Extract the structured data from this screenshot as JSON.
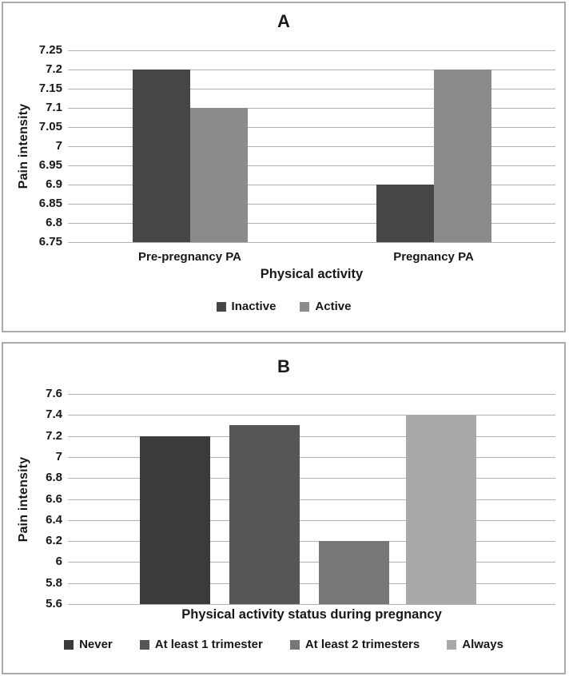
{
  "figure_labels": {
    "panel_a": "A",
    "panel_b": "B"
  },
  "colors": {
    "grid": "#b2b2b2",
    "panel_border": "#ababab",
    "text": "#171717",
    "background": "#ffffff"
  },
  "chart_data": [
    {
      "type": "bar",
      "title": "A",
      "xlabel": "Physical activity",
      "ylabel": "Pain intensity",
      "ylim": [
        6.75,
        7.25
      ],
      "ytick_interval": 0.05,
      "ytick_labels": [
        "7.25",
        "7.2",
        "7.15",
        "7.1",
        "7.05",
        "7",
        "6.95",
        "6.9",
        "6.85",
        "6.8",
        "6.75"
      ],
      "categories": [
        "Pre-pregnancy PA",
        "Pregnancy PA"
      ],
      "series": [
        {
          "name": "Inactive",
          "color": "#464646",
          "values": [
            7.2,
            6.9
          ]
        },
        {
          "name": "Active",
          "color": "#8b8b8b",
          "values": [
            7.1,
            7.2
          ]
        }
      ],
      "grid": true,
      "legend_position": "bottom",
      "legend": [
        "Inactive",
        "Active"
      ]
    },
    {
      "type": "bar",
      "title": "B",
      "xlabel": "Physical activity status during pregnancy",
      "ylabel": "Pain intensity",
      "ylim": [
        5.6,
        7.6
      ],
      "ytick_interval": 0.2,
      "ytick_labels": [
        "7.6",
        "7.4",
        "7.2",
        "7",
        "6.8",
        "6.6",
        "6.4",
        "6.2",
        "6",
        "5.8",
        "5.6"
      ],
      "categories": [
        "Never",
        "At least 1 trimester",
        "At least 2 trimesters",
        "Always"
      ],
      "series": [
        {
          "name": "Pain intensity",
          "values": [
            7.2,
            7.3,
            6.2,
            7.4
          ]
        }
      ],
      "bar_colors": [
        "#3b3b3b",
        "#565656",
        "#777777",
        "#a9a9a9"
      ],
      "legend": [
        "Never",
        "At least 1 trimester",
        "At least 2 trimesters",
        "Always"
      ],
      "grid": true,
      "legend_position": "bottom",
      "show_category_tick_labels": false
    }
  ]
}
